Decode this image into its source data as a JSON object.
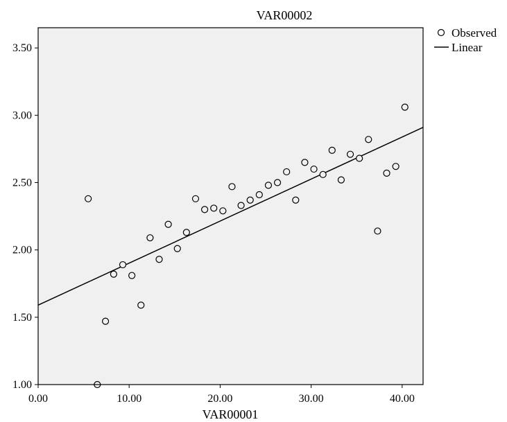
{
  "chart_data": {
    "type": "scatter",
    "title": "VAR00002",
    "xlabel": "VAR00001",
    "ylabel": "",
    "xlim": [
      0,
      42.3
    ],
    "ylim": [
      1.0,
      3.65
    ],
    "xticks": [
      0,
      10,
      20,
      30,
      40
    ],
    "xtick_labels": [
      "0.00",
      "10.00",
      "20.00",
      "30.00",
      "40.00"
    ],
    "yticks": [
      1.0,
      1.5,
      2.0,
      2.5,
      3.0,
      3.5
    ],
    "ytick_labels": [
      "1.00",
      "1.50",
      "2.00",
      "2.50",
      "3.00",
      "3.50"
    ],
    "grid": false,
    "legend_position": "top-right",
    "series": [
      {
        "name": "Observed",
        "kind": "points",
        "x": [
          5.5,
          6.5,
          7.4,
          8.3,
          9.3,
          10.3,
          11.3,
          12.3,
          13.3,
          14.3,
          15.3,
          16.3,
          17.3,
          18.3,
          19.3,
          20.3,
          21.3,
          22.3,
          23.3,
          24.3,
          25.3,
          26.3,
          27.3,
          28.3,
          29.3,
          30.3,
          31.3,
          32.3,
          33.3,
          34.3,
          35.3,
          36.3,
          37.3,
          38.3,
          39.3,
          40.3
        ],
        "y": [
          2.38,
          1.0,
          1.47,
          1.82,
          1.89,
          1.81,
          1.59,
          2.09,
          1.93,
          2.19,
          2.01,
          2.13,
          2.38,
          2.3,
          2.31,
          2.29,
          2.47,
          2.33,
          2.37,
          2.41,
          2.48,
          2.5,
          2.58,
          2.37,
          2.65,
          2.6,
          2.56,
          2.74,
          2.52,
          2.71,
          2.68,
          2.82,
          2.14,
          2.57,
          2.62,
          3.06
        ]
      },
      {
        "name": "Linear",
        "kind": "line",
        "x": [
          0,
          42.3
        ],
        "y": [
          1.59,
          2.91
        ]
      }
    ]
  },
  "colors": {
    "plot_background": "#f0f0f0",
    "frame": "#000000",
    "marker_fill": "#f0f0f0",
    "marker_stroke": "#000000",
    "line": "#000000"
  }
}
